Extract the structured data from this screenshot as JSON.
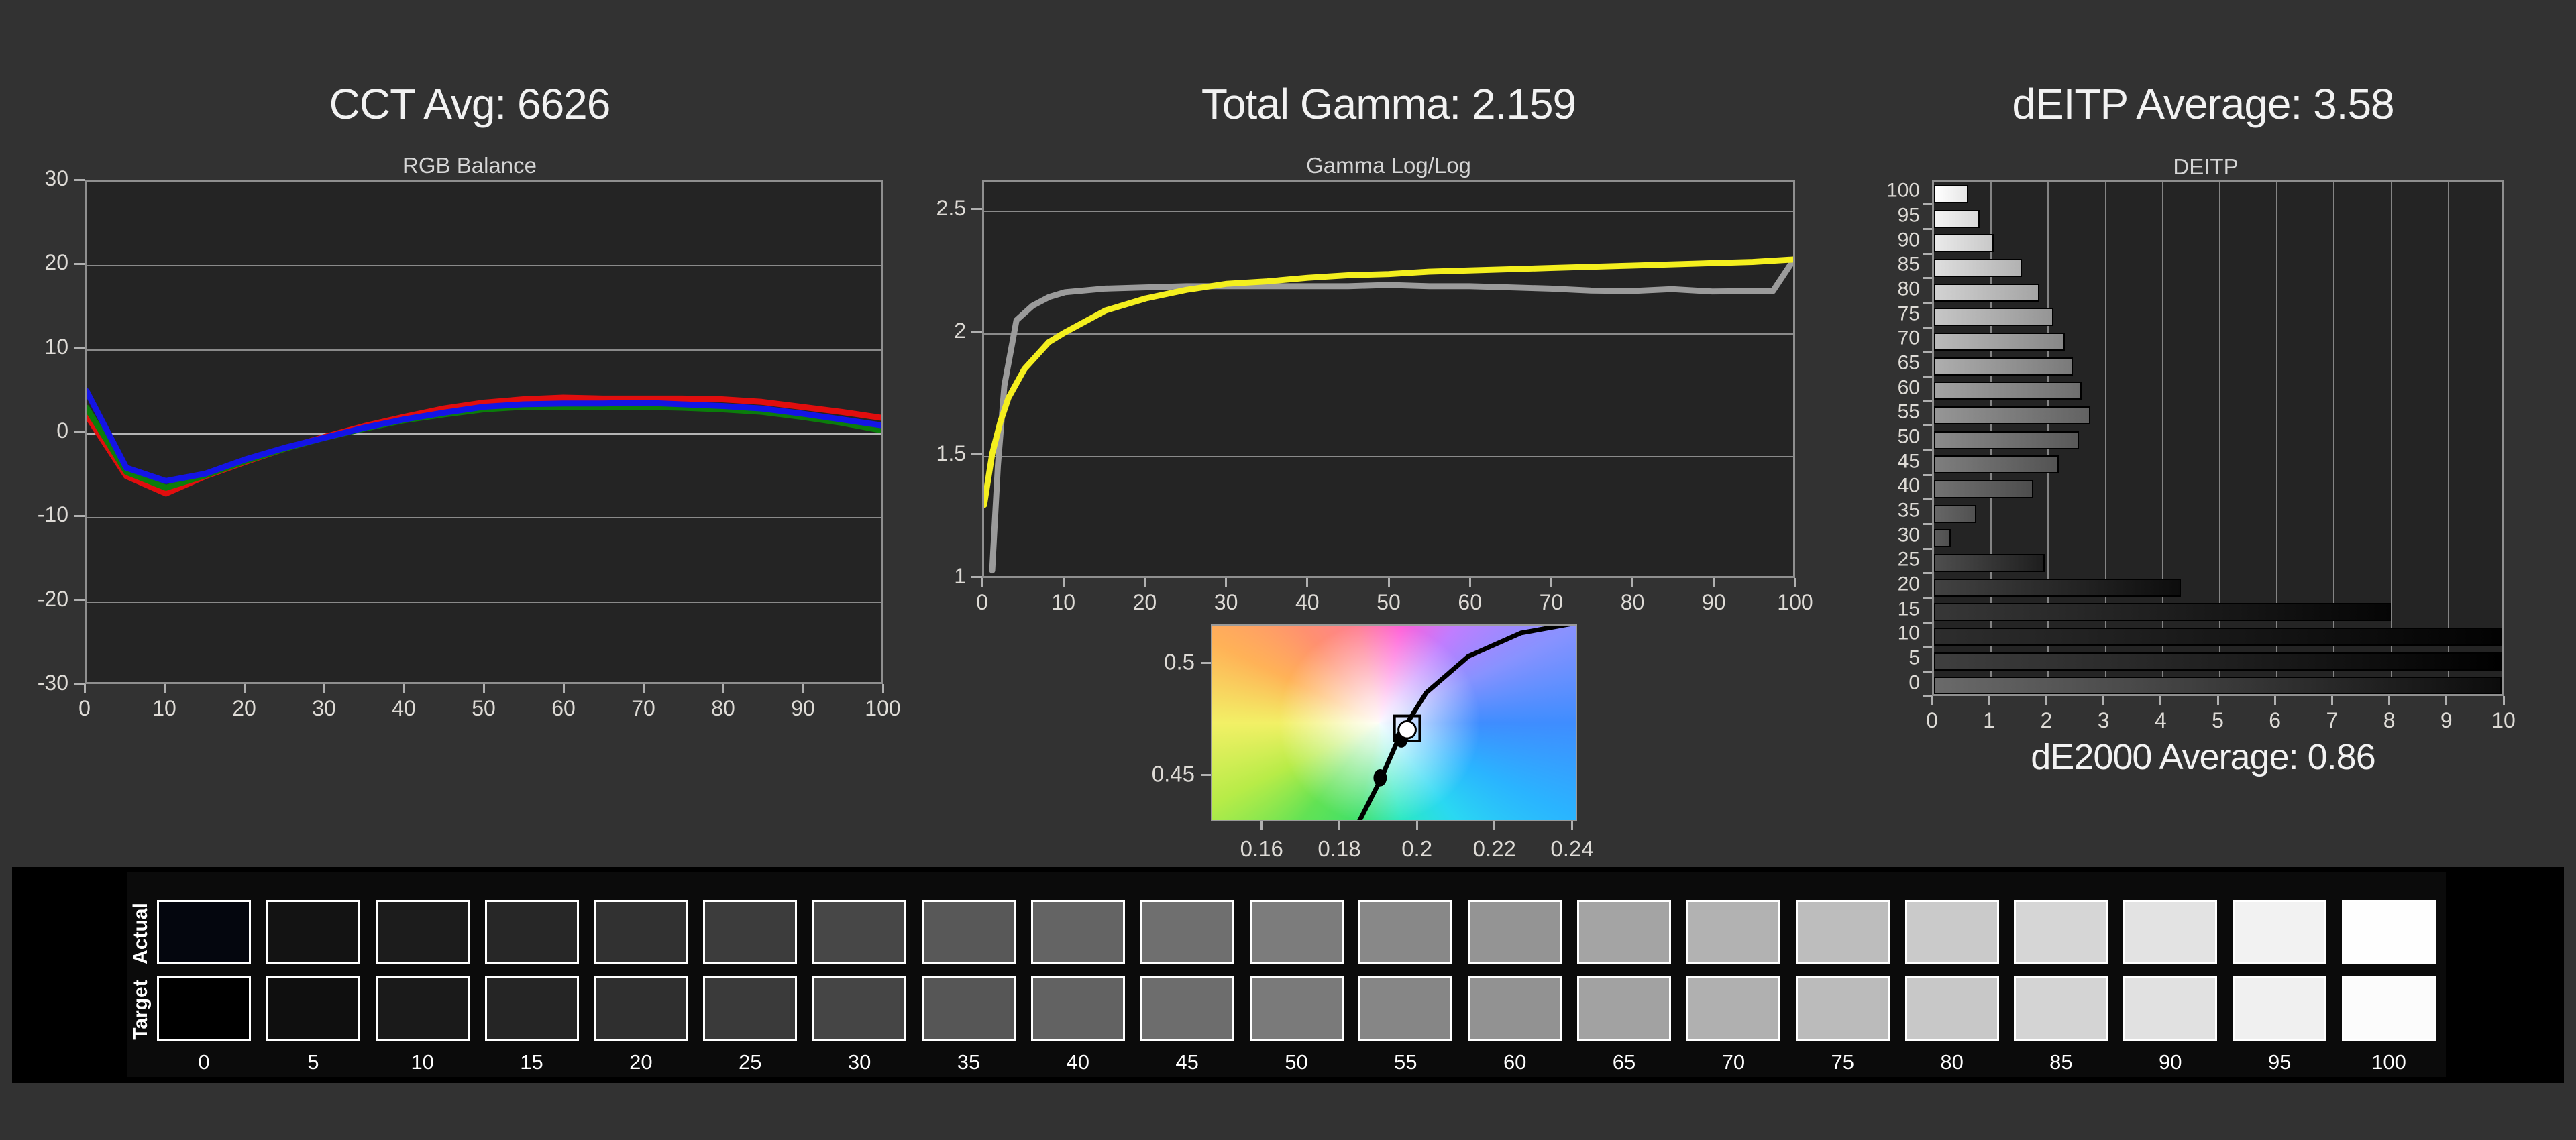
{
  "page": {
    "background": "#323232",
    "panel_background": "#242424",
    "panel_border": "#8f8f8f",
    "grid_color": "#8a8a8a",
    "label_color": "#dedbd6",
    "title_color": "#f2f2f2"
  },
  "cct": {
    "title": "CCT Avg: 6626",
    "subtitle": "RGB Balance"
  },
  "gamma": {
    "title": "Total Gamma: 2.159",
    "subtitle": "Gamma Log/Log"
  },
  "deitp": {
    "title": "dEITP Average: 3.58",
    "subtitle": "DEITP",
    "de2000": "dE2000 Average: 0.86"
  },
  "strip": {
    "row_labels": [
      "Actual",
      "Target"
    ],
    "tick_labels": [
      "0",
      "5",
      "10",
      "15",
      "20",
      "25",
      "30",
      "35",
      "40",
      "45",
      "50",
      "55",
      "60",
      "65",
      "70",
      "75",
      "80",
      "85",
      "90",
      "95",
      "100"
    ],
    "actual_colors": [
      "#04060e",
      "#131313",
      "#1c1c1c",
      "#272727",
      "#313131",
      "#3c3c3c",
      "#474747",
      "#585858",
      "#646464",
      "#6f6f6f",
      "#7c7c7c",
      "#888888",
      "#949494",
      "#a4a4a4",
      "#b2b2b2",
      "#bdbdbd",
      "#cacaca",
      "#d6d6d6",
      "#e3e3e3",
      "#f2f2f2",
      "#fefefe"
    ],
    "target_colors": [
      "#000000",
      "#0f0f0f",
      "#1a1a1a",
      "#252525",
      "#2f2f2f",
      "#3a3a3a",
      "#454545",
      "#565656",
      "#626262",
      "#6d6d6d",
      "#7a7a7a",
      "#868686",
      "#929292",
      "#a2a2a2",
      "#b0b0b0",
      "#bbbbbb",
      "#c8c8c8",
      "#d4d4d4",
      "#e1e1e1",
      "#f0f0f0",
      "#fcfcfc"
    ]
  },
  "chart_data": [
    {
      "id": "rgb_balance",
      "type": "line",
      "title": "RGB Balance",
      "x": [
        0,
        5,
        10,
        15,
        20,
        25,
        30,
        35,
        40,
        45,
        50,
        55,
        60,
        65,
        70,
        75,
        80,
        85,
        90,
        95,
        100
      ],
      "series": [
        {
          "name": "Red",
          "color": "#e10e0e",
          "values": [
            2.0,
            -5.3,
            -7.4,
            -5.3,
            -3.6,
            -2.0,
            -0.6,
            0.7,
            1.8,
            2.8,
            3.5,
            3.9,
            4.1,
            4.0,
            4.0,
            4.0,
            3.9,
            3.6,
            3.0,
            2.4,
            1.7
          ]
        },
        {
          "name": "Green",
          "color": "#0b7d0b",
          "values": [
            2.9,
            -4.8,
            -6.7,
            -5.2,
            -3.5,
            -2.0,
            -0.7,
            0.4,
            1.4,
            2.1,
            2.7,
            3.0,
            3.0,
            3.0,
            3.0,
            2.9,
            2.7,
            2.4,
            1.8,
            1.1,
            0.2
          ]
        },
        {
          "name": "Blue",
          "color": "#1414e6",
          "values": [
            4.9,
            -4.3,
            -5.9,
            -5.0,
            -3.3,
            -1.9,
            -0.7,
            0.5,
            1.5,
            2.3,
            3.0,
            3.3,
            3.4,
            3.4,
            3.5,
            3.3,
            3.1,
            2.8,
            2.2,
            1.5,
            0.8
          ]
        }
      ],
      "ylim": [
        -30,
        30
      ],
      "yticks": [
        30,
        20,
        10,
        0,
        -10,
        -20,
        -30
      ],
      "xticks": [
        0,
        10,
        20,
        30,
        40,
        50,
        60,
        70,
        80,
        90,
        100
      ],
      "grid": "horizontal"
    },
    {
      "id": "gamma_loglog",
      "type": "line",
      "title": "Gamma Log/Log",
      "ylim": [
        0.997,
        2.62
      ],
      "yticks": [
        2.5,
        2,
        1.5,
        1
      ],
      "xlim": [
        0,
        100
      ],
      "xticks": [
        0,
        10,
        20,
        30,
        40,
        50,
        60,
        70,
        80,
        90,
        100
      ],
      "grid": "horizontal",
      "series": [
        {
          "name": "Target",
          "color": "#9b9b9b",
          "x": [
            1,
            1.7,
            2.5,
            4,
            6,
            8,
            10,
            15,
            20,
            25,
            30,
            35,
            40,
            45,
            50,
            55,
            60,
            65,
            70,
            75,
            80,
            85,
            90,
            95,
            97.5,
            100
          ],
          "values": [
            1.02,
            1.45,
            1.78,
            2.05,
            2.11,
            2.145,
            2.165,
            2.18,
            2.185,
            2.19,
            2.19,
            2.19,
            2.19,
            2.19,
            2.195,
            2.19,
            2.19,
            2.185,
            2.18,
            2.172,
            2.17,
            2.178,
            2.168,
            2.17,
            2.17,
            2.295
          ]
        },
        {
          "name": "Measured",
          "color": "#f4ef1e",
          "x": [
            0,
            1,
            2,
            3,
            5,
            8,
            10,
            15,
            20,
            25,
            30,
            35,
            40,
            45,
            50,
            55,
            60,
            65,
            70,
            75,
            80,
            85,
            90,
            95,
            100
          ],
          "values": [
            1.29,
            1.5,
            1.63,
            1.73,
            1.85,
            1.96,
            2.0,
            2.09,
            2.14,
            2.175,
            2.2,
            2.21,
            2.225,
            2.235,
            2.24,
            2.25,
            2.255,
            2.26,
            2.265,
            2.27,
            2.275,
            2.28,
            2.285,
            2.29,
            2.3
          ]
        }
      ]
    },
    {
      "id": "cie_detail",
      "type": "scatter",
      "xlim": [
        0.1469,
        0.2413
      ],
      "ylim": [
        0.4293,
        0.5173
      ],
      "xticks": [
        0.16,
        0.18,
        0.2,
        0.22,
        0.24
      ],
      "yticks": [
        0.5,
        0.45
      ],
      "locus": [
        [
          0.1825,
          0.418
        ],
        [
          0.185,
          0.4285
        ],
        [
          0.1906,
          0.4476
        ],
        [
          0.196,
          0.469
        ],
        [
          0.2025,
          0.487
        ],
        [
          0.2134,
          0.5034
        ],
        [
          0.2271,
          0.514
        ],
        [
          0.2445,
          0.5195
        ]
      ],
      "points": [
        [
          0.1835,
          0.4245
        ],
        [
          0.1905,
          0.4485
        ],
        [
          0.196,
          0.466
        ],
        [
          0.1972,
          0.4695
        ]
      ],
      "white_point": [
        0.1975,
        0.4702
      ],
      "locus_color": "#000000",
      "point_color": "#000000",
      "white_point_fill": "#ffffff"
    },
    {
      "id": "deitp",
      "type": "bar",
      "categories": [
        100,
        95,
        90,
        85,
        80,
        75,
        70,
        65,
        60,
        55,
        50,
        45,
        40,
        35,
        30,
        25,
        20,
        15,
        10,
        5,
        0
      ],
      "values": [
        0.6,
        0.8,
        1.05,
        1.55,
        1.85,
        2.1,
        2.3,
        2.45,
        2.6,
        2.75,
        2.55,
        2.2,
        1.75,
        0.75,
        0.3,
        1.95,
        4.35,
        8.05,
        10,
        10,
        10
      ],
      "bar_fills": [
        [
          "#ffffff",
          "#e6e6e6"
        ],
        [
          "#f4f4f4",
          "#d8d8d8"
        ],
        [
          "#eaeaea",
          "#c8c8c8"
        ],
        [
          "#dedede",
          "#b2b2b2"
        ],
        [
          "#d2d2d2",
          "#a4a4a4"
        ],
        [
          "#c6c6c6",
          "#959595"
        ],
        [
          "#bababa",
          "#878787"
        ],
        [
          "#aeaeae",
          "#7a7a7a"
        ],
        [
          "#a2a2a2",
          "#6e6e6e"
        ],
        [
          "#969696",
          "#626262"
        ],
        [
          "#8a8a8a",
          "#595959"
        ],
        [
          "#7e7e7e",
          "#535353"
        ],
        [
          "#727272",
          "#4d4d4d"
        ],
        [
          "#666666",
          "#515151"
        ],
        [
          "#5a5a5a",
          "#505050"
        ],
        [
          "#4e4e4e",
          "#1e1e1e"
        ],
        [
          "#424242",
          "#0d0d0d"
        ],
        [
          "#373737",
          "#050505"
        ],
        [
          "#2d2d2d",
          "#020202"
        ],
        [
          "#3f3f3f",
          "#000000"
        ],
        [
          "#6a6a6a",
          "#0c0c0c"
        ]
      ],
      "xlim": [
        0,
        10
      ],
      "xticks": [
        0,
        1,
        2,
        3,
        4,
        5,
        6,
        7,
        8,
        9,
        10
      ],
      "grid": "vertical"
    }
  ]
}
